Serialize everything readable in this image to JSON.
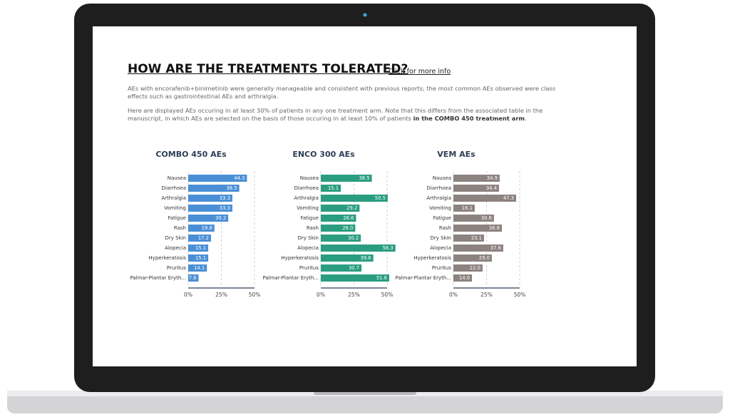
{
  "page": {
    "title": "HOW ARE THE TREATMENTS TOLERATED?",
    "link": "Click for more info",
    "paragraph1": "AEs with encorafenib+binimetinib were generally manageable and consistent with previous reports; the most common AEs observed were class effects such as gastrointestinal AEs and arthralgia.",
    "paragraph2": [
      "Here are displayed AEs occuring in at least 30% of patients in any one treatment arm. Note that this differs from the associated table in the manuscript, in which AEs are selected on the basis of those occuring in at least 10% of patients ",
      "in the COMBO 450 treatment arm",
      "."
    ]
  },
  "chart_data": [
    {
      "type": "bar",
      "orientation": "horizontal",
      "title": "COMBO 450 AEs",
      "categories": [
        "Nausea",
        "Diarrhoea",
        "Arthralgia",
        "Vomiting",
        "Fatigue",
        "Rash",
        "Dry Skin",
        "Alopecia",
        "Hyperkeratosis",
        "Pruritus",
        "Palmar-Plantar Eryth..."
      ],
      "values": [
        44.3,
        38.5,
        33.3,
        33.3,
        30.2,
        19.8,
        17.2,
        15.1,
        15.1,
        14.1,
        7.8
      ],
      "value_labels": [
        "44.3",
        "38.5",
        "33.3",
        "33.3",
        "30.2",
        "19.8",
        "17.2",
        "15.1",
        "15.1",
        "14.1",
        "7.8"
      ],
      "color": "#4a8fd6",
      "xlim": [
        0,
        50
      ],
      "xticks": [
        {
          "value": 0,
          "label": "0%"
        },
        {
          "value": 25,
          "label": "25%"
        },
        {
          "value": 50,
          "label": "50%"
        }
      ],
      "grid": true
    },
    {
      "type": "bar",
      "orientation": "horizontal",
      "title": "ENCO 300 AEs",
      "categories": [
        "Nausea",
        "Diarrhoea",
        "Arthralgia",
        "Vomiting",
        "Fatigue",
        "Rash",
        "Dry Skin",
        "Alopecia",
        "Hyperkeratosis",
        "Pruritus",
        "Palmar-Plantar Eryth..."
      ],
      "values": [
        38.5,
        15.1,
        50.5,
        29.2,
        26.6,
        26,
        30.2,
        56.3,
        39.6,
        30.7,
        51.6
      ],
      "value_labels": [
        "38.5",
        "15.1",
        "50.5",
        "29.2",
        "26.6",
        "26.0",
        "30.2",
        "56.3",
        "39.6",
        "30.7",
        "51.6"
      ],
      "color": "#2a9d80",
      "xlim": [
        0,
        50
      ],
      "xticks": [
        {
          "value": 0,
          "label": "0%"
        },
        {
          "value": 25,
          "label": "25%"
        },
        {
          "value": 50,
          "label": "50%"
        }
      ],
      "grid": true
    },
    {
      "type": "bar",
      "orientation": "horizontal",
      "title": "VEM AEs",
      "categories": [
        "Nausea",
        "Diarrhoea",
        "Arthralgia",
        "Vomiting",
        "Fatigue",
        "Rash",
        "Dry Skin",
        "Alopecia",
        "Hyperkeratosis",
        "Pruritus",
        "Palmar-Plantar Eryth..."
      ],
      "values": [
        34.9,
        34.4,
        47.3,
        16.1,
        30.6,
        36.6,
        23.1,
        37.6,
        29,
        22,
        14
      ],
      "value_labels": [
        "34.9",
        "34.4",
        "47.3",
        "16.1",
        "30.6",
        "36.6",
        "23.1",
        "37.6",
        "29.0",
        "22.0",
        "14.0"
      ],
      "color": "#8c8280",
      "xlim": [
        0,
        50
      ],
      "xticks": [
        {
          "value": 0,
          "label": "0%"
        },
        {
          "value": 25,
          "label": "25%"
        },
        {
          "value": 50,
          "label": "50%"
        }
      ],
      "grid": true
    }
  ]
}
